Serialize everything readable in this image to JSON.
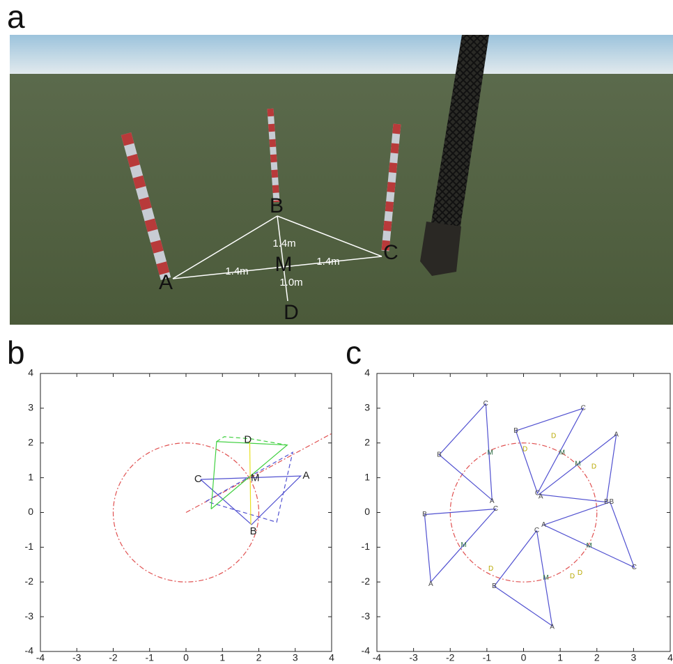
{
  "panel_labels": [
    "a",
    "b",
    "c"
  ],
  "scene": {
    "points": [
      "A",
      "B",
      "C",
      "M",
      "D"
    ],
    "distances": [
      "1.4m",
      "1.4m",
      "1.4m",
      "1.0m"
    ]
  },
  "chart_data": [
    {
      "type": "line",
      "xlim": [
        -4,
        4
      ],
      "ylim": [
        -4,
        4
      ],
      "xticks": [
        -4,
        -3,
        -2,
        -1,
        0,
        1,
        2,
        3,
        4
      ],
      "yticks": [
        -4,
        -3,
        -2,
        -1,
        0,
        1,
        2,
        3,
        4
      ],
      "circle": {
        "x": 0,
        "y": 0,
        "r": 2,
        "color": "#e05050"
      },
      "series": [
        {
          "color": "#e05050",
          "style": "dashdot",
          "x": [
            0,
            4
          ],
          "y": [
            0,
            2.27
          ]
        },
        {
          "color": "#5050d0",
          "style": "solid",
          "x": [
            0.4,
            3.15,
            1.8,
            0.4
          ],
          "y": [
            0.95,
            1.05,
            -0.35,
            0.95
          ]
        },
        {
          "color": "#5050d0",
          "style": "dashed",
          "x": [
            0.55,
            2.93,
            2.49,
            0.55
          ],
          "y": [
            0.32,
            1.73,
            -0.28,
            0.32
          ]
        },
        {
          "color": "#40d040",
          "style": "solid",
          "x": [
            0.69,
            0.84,
            2.78,
            0.69
          ],
          "y": [
            0.1,
            2.04,
            1.94,
            0.1
          ]
        },
        {
          "color": "#40d040",
          "style": "dashed",
          "x": [
            0.84,
            1.05,
            1.78,
            2.78
          ],
          "y": [
            2.04,
            2.18,
            2.12,
            1.94
          ]
        },
        {
          "color": "#e8e020",
          "style": "solid",
          "x": [
            1.75,
            1.78
          ],
          "y": [
            2.05,
            -0.35
          ]
        }
      ],
      "labels": [
        {
          "text": "C",
          "x": 0.33,
          "y": 0.95,
          "color": "#222222"
        },
        {
          "text": "M",
          "x": 1.9,
          "y": 0.98,
          "color": "#222222"
        },
        {
          "text": "A",
          "x": 3.3,
          "y": 1.05,
          "color": "#222222"
        },
        {
          "text": "B",
          "x": 1.85,
          "y": -0.55,
          "color": "#222222"
        },
        {
          "text": "D",
          "x": 1.7,
          "y": 2.08,
          "color": "#222222"
        }
      ]
    },
    {
      "type": "line",
      "xlim": [
        -4,
        4
      ],
      "ylim": [
        -4,
        4
      ],
      "xticks": [
        -4,
        -3,
        -2,
        -1,
        0,
        1,
        2,
        3,
        4
      ],
      "yticks": [
        -4,
        -3,
        -2,
        -1,
        0,
        1,
        2,
        3,
        4
      ],
      "circle": {
        "x": 0,
        "y": 0,
        "r": 2,
        "color": "#e05050"
      },
      "series": [
        {
          "color": "#5050d0",
          "style": "solid",
          "x": [
            -1.03,
            -2.3,
            -0.86,
            -1.03
          ],
          "y": [
            3.13,
            1.66,
            0.36,
            3.13
          ]
        },
        {
          "color": "#5050d0",
          "style": "solid",
          "x": [
            -0.21,
            1.63,
            0.38,
            -0.21
          ],
          "y": [
            2.35,
            3.0,
            0.55,
            2.35
          ]
        },
        {
          "color": "#5050d0",
          "style": "solid",
          "x": [
            2.53,
            2.26,
            0.42,
            2.53
          ],
          "y": [
            2.24,
            0.3,
            0.52,
            2.24
          ]
        },
        {
          "color": "#5050d0",
          "style": "solid",
          "x": [
            -2.7,
            -0.76,
            -2.53,
            -2.7
          ],
          "y": [
            -0.06,
            0.1,
            -2.0,
            -0.06
          ]
        },
        {
          "color": "#5050d0",
          "style": "solid",
          "x": [
            0.36,
            -0.8,
            0.78,
            0.36
          ],
          "y": [
            -0.52,
            -2.12,
            -3.26,
            -0.52
          ]
        },
        {
          "color": "#5050d0",
          "style": "solid",
          "x": [
            2.36,
            0.55,
            3.02,
            2.36
          ],
          "y": [
            0.3,
            -0.36,
            -1.58,
            0.3
          ]
        }
      ],
      "labels": [
        {
          "text": "C",
          "x": -1.03,
          "y": 3.13,
          "color": "#444444"
        },
        {
          "text": "B",
          "x": -2.3,
          "y": 1.66,
          "color": "#444444"
        },
        {
          "text": "A",
          "x": -0.86,
          "y": 0.32,
          "color": "#444444"
        },
        {
          "text": "M",
          "x": -0.91,
          "y": 1.72,
          "color": "#2a6a40"
        },
        {
          "text": "B",
          "x": -0.21,
          "y": 2.35,
          "color": "#444444"
        },
        {
          "text": "C",
          "x": 1.63,
          "y": 3.0,
          "color": "#444444"
        },
        {
          "text": "C",
          "x": 0.38,
          "y": 0.55,
          "color": "#444444"
        },
        {
          "text": "M",
          "x": 1.05,
          "y": 1.72,
          "color": "#2a6a40"
        },
        {
          "text": "A",
          "x": 2.53,
          "y": 2.24,
          "color": "#444444"
        },
        {
          "text": "B",
          "x": 2.26,
          "y": 0.3,
          "color": "#444444"
        },
        {
          "text": "A",
          "x": 0.47,
          "y": 0.45,
          "color": "#444444"
        },
        {
          "text": "M",
          "x": 1.48,
          "y": 1.4,
          "color": "#2a6a40"
        },
        {
          "text": "B",
          "x": -2.7,
          "y": -0.06,
          "color": "#444444"
        },
        {
          "text": "C",
          "x": -0.76,
          "y": 0.1,
          "color": "#444444"
        },
        {
          "text": "A",
          "x": -2.53,
          "y": -2.06,
          "color": "#444444"
        },
        {
          "text": "M",
          "x": -1.63,
          "y": -0.94,
          "color": "#2a6a40"
        },
        {
          "text": "C",
          "x": 0.36,
          "y": -0.52,
          "color": "#444444"
        },
        {
          "text": "B",
          "x": -0.8,
          "y": -2.12,
          "color": "#444444"
        },
        {
          "text": "A",
          "x": 0.78,
          "y": -3.3,
          "color": "#444444"
        },
        {
          "text": "M",
          "x": 0.61,
          "y": -1.88,
          "color": "#2a6a40"
        },
        {
          "text": "B",
          "x": 2.4,
          "y": 0.3,
          "color": "#444444"
        },
        {
          "text": "A",
          "x": 0.55,
          "y": -0.36,
          "color": "#444444"
        },
        {
          "text": "C",
          "x": 3.02,
          "y": -1.58,
          "color": "#444444"
        },
        {
          "text": "M",
          "x": 1.79,
          "y": -0.96,
          "color": "#2a6a40"
        },
        {
          "text": "D",
          "x": 0.82,
          "y": 2.2,
          "color": "#b8a800"
        },
        {
          "text": "D",
          "x": 0.04,
          "y": 1.82,
          "color": "#b8a800"
        },
        {
          "text": "D",
          "x": 1.92,
          "y": 1.32,
          "color": "#b8a800"
        },
        {
          "text": "D",
          "x": -0.89,
          "y": -1.62,
          "color": "#b8a800"
        },
        {
          "text": "D",
          "x": 1.33,
          "y": -1.84,
          "color": "#b8a800"
        },
        {
          "text": "D",
          "x": 1.54,
          "y": -1.74,
          "color": "#b8a800"
        }
      ]
    }
  ]
}
